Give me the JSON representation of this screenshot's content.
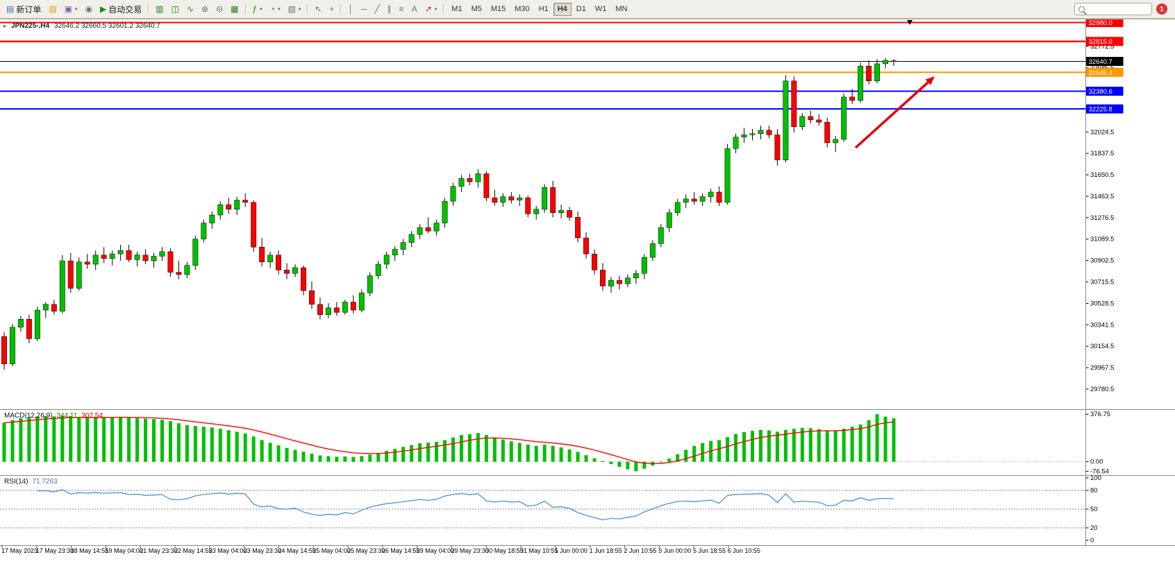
{
  "toolbar": {
    "new_order_label": "新订单",
    "auto_trading_label": "自动交易",
    "timeframes": [
      "M1",
      "M5",
      "M15",
      "M30",
      "H1",
      "H4",
      "D1",
      "W1",
      "MN"
    ],
    "active_timeframe": "H4",
    "notification_count": "1",
    "search_value": ""
  },
  "icons": {
    "new_order": "▤",
    "profiles": "▨",
    "new_chart": "▣",
    "mql5": "◉",
    "play": "▶",
    "bar_chart": "▥",
    "candlestick": "◫",
    "line_chart": "∿",
    "zoom_in": "⊕",
    "zoom_out": "⊖",
    "tile_windows": "▦",
    "indicators": "ƒ",
    "period": "◔",
    "templates": "▧",
    "cursor": "↖",
    "crosshair": "+",
    "vertical_line": "│",
    "horizontal_line": "─",
    "trendline": "╱",
    "channel": "∥",
    "fibonacci": "≡",
    "text": "A",
    "arrow_tool": "↗",
    "caret": "▾",
    "one_click": "▸"
  },
  "chart": {
    "symbol_period": "JPN225-,H4",
    "ohlc": "32646.2 32660.5 32601.2 32640.7"
  },
  "macd": {
    "name": "MACD(12,26,9)",
    "value_main": "344.11",
    "value_signal": "307.54"
  },
  "rsi": {
    "name": "RSI(14)",
    "value": "71.7263"
  },
  "chart_data": {
    "type": "candlestick",
    "symbol": "JPN225-",
    "period": "H4",
    "price_range": [
      29635,
      32995
    ],
    "y_ticks": [
      "32959.5",
      "32772.5",
      "32585.5",
      "32398.5",
      "32211.5",
      "32024.5",
      "31837.5",
      "31650.5",
      "31463.5",
      "31276.5",
      "31089.5",
      "30902.5",
      "30715.5",
      "30528.5",
      "30341.5",
      "30154.5",
      "29967.5",
      "29780.5"
    ],
    "levels": [
      {
        "price": 32980.0,
        "label": "32980.0",
        "color": "#ff0000",
        "width": 2
      },
      {
        "price": 32815.0,
        "label": "32815.0",
        "color": "#ff0000",
        "width": 2.5
      },
      {
        "price": 32640.7,
        "label": "32640.7",
        "color": "#000000",
        "width": 1
      },
      {
        "price": 32545.4,
        "label": "32545.4",
        "color": "#ff9500",
        "width": 2
      },
      {
        "price": 32380.6,
        "label": "32380.6",
        "color": "#0000ff",
        "width": 2
      },
      {
        "price": 32225.8,
        "label": "32225.8",
        "color": "#0000ff",
        "width": 2
      }
    ],
    "time_labels": [
      "17 May 2023",
      "17 May 23:30",
      "18 May 14:55",
      "19 May 04:00",
      "21 May 23:30",
      "22 May 14:55",
      "23 May 04:00",
      "23 May 23:30",
      "24 May 14:55",
      "25 May 04:00",
      "25 May 23:30",
      "26 May 14:55",
      "29 May 04:00",
      "29 May 23:30",
      "30 May 18:55",
      "31 May 10:55",
      "1 Jun 00:00",
      "1 Jun 18:55",
      "2 Jun 10:55",
      "5 Jun 00:00",
      "5 Jun 18:55",
      "6 Jun 10:55"
    ],
    "colors": {
      "bull": "#00c000",
      "bear": "#ff0000",
      "wick": "#000000",
      "background": "#ffffff"
    },
    "arrow_annotation": {
      "from": [
        1232,
        213
      ],
      "to": [
        1346,
        110
      ],
      "color": "#e10000"
    },
    "shift_marker_x": 1310,
    "candles": [
      [
        30240,
        30280,
        29950,
        30000
      ],
      [
        30000,
        30350,
        29980,
        30320
      ],
      [
        30320,
        30420,
        30280,
        30390
      ],
      [
        30390,
        30430,
        30180,
        30220
      ],
      [
        30220,
        30500,
        30200,
        30470
      ],
      [
        30470,
        30540,
        30400,
        30520
      ],
      [
        30520,
        30560,
        30430,
        30460
      ],
      [
        30460,
        30950,
        30440,
        30900
      ],
      [
        30900,
        30970,
        30620,
        30660
      ],
      [
        30660,
        30930,
        30640,
        30890
      ],
      [
        30890,
        30960,
        30830,
        30870
      ],
      [
        30870,
        30990,
        30820,
        30950
      ],
      [
        30950,
        31020,
        30880,
        30920
      ],
      [
        30920,
        30990,
        30860,
        30960
      ],
      [
        30960,
        31040,
        30900,
        30990
      ],
      [
        30990,
        31040,
        30890,
        30910
      ],
      [
        30910,
        30980,
        30850,
        30950
      ],
      [
        30950,
        31000,
        30870,
        30900
      ],
      [
        30900,
        30970,
        30840,
        30940
      ],
      [
        30940,
        31020,
        30900,
        30980
      ],
      [
        30980,
        31010,
        30760,
        30800
      ],
      [
        30800,
        30900,
        30740,
        30780
      ],
      [
        30780,
        30890,
        30750,
        30860
      ],
      [
        30860,
        31120,
        30820,
        31090
      ],
      [
        31090,
        31260,
        31060,
        31230
      ],
      [
        31230,
        31330,
        31180,
        31300
      ],
      [
        31300,
        31420,
        31260,
        31390
      ],
      [
        31390,
        31450,
        31310,
        31350
      ],
      [
        31350,
        31460,
        31300,
        31430
      ],
      [
        31430,
        31490,
        31370,
        31410
      ],
      [
        31410,
        31430,
        30980,
        31020
      ],
      [
        31020,
        31100,
        30850,
        30890
      ],
      [
        30890,
        30980,
        30840,
        30950
      ],
      [
        30950,
        30990,
        30780,
        30820
      ],
      [
        30820,
        30880,
        30740,
        30790
      ],
      [
        30790,
        30870,
        30760,
        30840
      ],
      [
        30840,
        30860,
        30600,
        30640
      ],
      [
        30640,
        30720,
        30480,
        30520
      ],
      [
        30520,
        30580,
        30390,
        30430
      ],
      [
        30430,
        30530,
        30400,
        30490
      ],
      [
        30490,
        30540,
        30420,
        30450
      ],
      [
        30450,
        30560,
        30430,
        30540
      ],
      [
        30540,
        30600,
        30440,
        30470
      ],
      [
        30470,
        30650,
        30450,
        30620
      ],
      [
        30620,
        30800,
        30590,
        30770
      ],
      [
        30770,
        30900,
        30740,
        30870
      ],
      [
        30870,
        30980,
        30830,
        30950
      ],
      [
        30950,
        31030,
        30900,
        31000
      ],
      [
        31000,
        31090,
        30950,
        31060
      ],
      [
        31060,
        31160,
        31020,
        31130
      ],
      [
        31130,
        31220,
        31090,
        31190
      ],
      [
        31190,
        31280,
        31140,
        31160
      ],
      [
        31160,
        31260,
        31120,
        31230
      ],
      [
        31230,
        31450,
        31190,
        31420
      ],
      [
        31420,
        31580,
        31380,
        31550
      ],
      [
        31550,
        31650,
        31500,
        31620
      ],
      [
        31620,
        31660,
        31560,
        31590
      ],
      [
        31590,
        31700,
        31540,
        31660
      ],
      [
        31660,
        31680,
        31420,
        31450
      ],
      [
        31450,
        31520,
        31380,
        31410
      ],
      [
        31410,
        31490,
        31370,
        31460
      ],
      [
        31460,
        31500,
        31400,
        31430
      ],
      [
        31430,
        31480,
        31380,
        31450
      ],
      [
        31450,
        31470,
        31280,
        31310
      ],
      [
        31310,
        31380,
        31260,
        31350
      ],
      [
        31350,
        31570,
        31320,
        31540
      ],
      [
        31540,
        31600,
        31280,
        31320
      ],
      [
        31320,
        31390,
        31270,
        31340
      ],
      [
        31340,
        31370,
        31250,
        31280
      ],
      [
        31280,
        31330,
        31060,
        31100
      ],
      [
        31100,
        31150,
        30920,
        30960
      ],
      [
        30960,
        31000,
        30780,
        30820
      ],
      [
        30820,
        30880,
        30640,
        30680
      ],
      [
        30680,
        30760,
        30620,
        30730
      ],
      [
        30730,
        30770,
        30650,
        30700
      ],
      [
        30700,
        30780,
        30670,
        30750
      ],
      [
        30750,
        30820,
        30700,
        30790
      ],
      [
        30790,
        30960,
        30740,
        30930
      ],
      [
        30930,
        31080,
        30900,
        31050
      ],
      [
        31050,
        31220,
        31020,
        31190
      ],
      [
        31190,
        31350,
        31150,
        31320
      ],
      [
        31320,
        31440,
        31290,
        31410
      ],
      [
        31410,
        31480,
        31360,
        31440
      ],
      [
        31440,
        31500,
        31390,
        31420
      ],
      [
        31420,
        31490,
        31380,
        31460
      ],
      [
        31460,
        31530,
        31410,
        31500
      ],
      [
        31500,
        31550,
        31380,
        31410
      ],
      [
        31410,
        31920,
        31390,
        31880
      ],
      [
        31880,
        32010,
        31840,
        31980
      ],
      [
        31980,
        32060,
        31930,
        32000
      ],
      [
        32000,
        32050,
        31950,
        32010
      ],
      [
        32010,
        32080,
        31960,
        32040
      ],
      [
        32040,
        32080,
        31970,
        32000
      ],
      [
        32000,
        32050,
        31730,
        31780
      ],
      [
        31780,
        32520,
        31760,
        32470
      ],
      [
        32470,
        32510,
        32020,
        32070
      ],
      [
        32070,
        32190,
        32040,
        32160
      ],
      [
        32160,
        32210,
        32100,
        32130
      ],
      [
        32130,
        32180,
        32080,
        32110
      ],
      [
        32110,
        32150,
        31890,
        31930
      ],
      [
        31930,
        31990,
        31850,
        31960
      ],
      [
        31960,
        32360,
        31940,
        32330
      ],
      [
        32330,
        32400,
        32270,
        32300
      ],
      [
        32300,
        32630,
        32280,
        32600
      ],
      [
        32600,
        32650,
        32440,
        32470
      ],
      [
        32470,
        32660,
        32450,
        32620
      ],
      [
        32620,
        32670,
        32580,
        32650
      ],
      [
        32646.2,
        32660.5,
        32601.2,
        32640.7
      ]
    ],
    "indicators": {
      "macd": {
        "range": [
          -95,
          400
        ],
        "signal_period": 9,
        "hist_color": "#00c000",
        "signal_color": "#ff0000",
        "axis": [
          {
            "v": 376.75,
            "label": "376.75"
          },
          {
            "v": 0,
            "label": "0.00"
          },
          {
            "v": -76.54,
            "label": "-76.54"
          }
        ],
        "histogram": [
          310,
          330,
          345,
          352,
          358,
          362,
          360,
          365,
          362,
          355,
          348,
          350,
          352,
          354,
          356,
          352,
          346,
          342,
          338,
          334,
          322,
          305,
          290,
          284,
          278,
          272,
          262,
          250,
          238,
          224,
          200,
          172,
          150,
          130,
          110,
          95,
          80,
          64,
          50,
          44,
          40,
          42,
          38,
          45,
          56,
          70,
          86,
          102,
          118,
          132,
          146,
          152,
          158,
          172,
          192,
          212,
          218,
          228,
          212,
          192,
          176,
          162,
          150,
          136,
          126,
          136,
          126,
          114,
          98,
          78,
          52,
          28,
          4,
          -18,
          -40,
          -60,
          -76,
          -55,
          -30,
          -5,
          25,
          60,
          95,
          125,
          148,
          165,
          172,
          195,
          220,
          235,
          245,
          252,
          248,
          238,
          252,
          262,
          268,
          266,
          258,
          248,
          245,
          262,
          278,
          295,
          330,
          376.75,
          358,
          344.11
        ]
      },
      "rsi": {
        "period": 14,
        "color": "#4a90d8",
        "range": [
          0,
          100
        ],
        "levels": [
          80,
          50,
          20
        ],
        "axis": [
          {
            "v": 100,
            "label": "100"
          },
          {
            "v": 80,
            "label": "80"
          },
          {
            "v": 50,
            "label": "50"
          },
          {
            "v": 20,
            "label": "20"
          },
          {
            "v": 0,
            "label": "0"
          }
        ]
      }
    }
  }
}
